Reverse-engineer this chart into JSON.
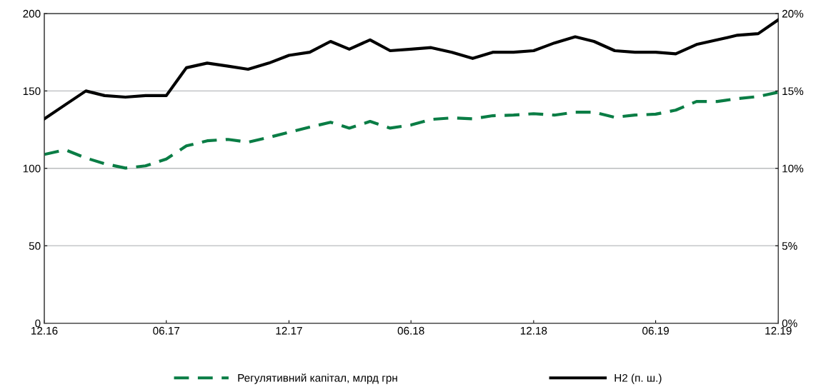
{
  "chart_data": {
    "type": "line",
    "x": [
      "2016-12",
      "2017-01",
      "2017-02",
      "2017-03",
      "2017-04",
      "2017-05",
      "2017-06",
      "2017-07",
      "2017-08",
      "2017-09",
      "2017-10",
      "2017-11",
      "2017-12",
      "2018-01",
      "2018-02",
      "2018-03",
      "2018-04",
      "2018-05",
      "2018-06",
      "2018-07",
      "2018-08",
      "2018-09",
      "2018-10",
      "2018-11",
      "2018-12",
      "2019-01",
      "2019-02",
      "2019-03",
      "2019-04",
      "2019-05",
      "2019-06",
      "2019-07",
      "2019-08",
      "2019-09",
      "2019-10",
      "2019-11",
      "2019-12"
    ],
    "series": [
      {
        "name": "Регулятивний капітал, млрд грн",
        "color": "#0a7d45",
        "line_style": "dashed",
        "values": [
          109,
          112,
          106.7,
          103,
          100.2,
          101.6,
          106,
          114.5,
          117.8,
          118.7,
          116.9,
          120,
          123.3,
          126.6,
          129.8,
          126,
          130.3,
          126,
          128,
          131.6,
          132.6,
          132,
          134,
          134.4,
          135.3,
          134.4,
          136.3,
          136.3,
          133,
          134.4,
          135,
          137.6,
          143.2,
          143.2,
          145,
          146.4,
          149.2
        ]
      },
      {
        "name": "Н2 (п. ш.)",
        "color": "#000000",
        "line_style": "solid",
        "axis": "y2",
        "values": [
          13.2,
          14.1,
          15.0,
          14.7,
          14.6,
          14.7,
          14.7,
          16.5,
          16.8,
          16.6,
          16.4,
          16.8,
          17.3,
          17.5,
          18.2,
          17.7,
          18.3,
          17.6,
          17.7,
          17.8,
          17.5,
          17.1,
          17.5,
          17.5,
          17.6,
          18.1,
          18.5,
          18.2,
          17.6,
          17.5,
          17.5,
          17.4,
          18.0,
          18.3,
          18.6,
          18.7,
          19.6
        ]
      }
    ],
    "xlim": [
      "2016-12",
      "2019-12"
    ],
    "xticks": [
      {
        "value": "2016-12",
        "label": "12.16"
      },
      {
        "value": "2017-06",
        "label": "06.17"
      },
      {
        "value": "2017-12",
        "label": "12.17"
      },
      {
        "value": "2018-06",
        "label": "06.18"
      },
      {
        "value": "2018-12",
        "label": "12.18"
      },
      {
        "value": "2019-06",
        "label": "06.19"
      },
      {
        "value": "2019-12",
        "label": "12.19"
      }
    ],
    "ylim": [
      0,
      200
    ],
    "yticks": [
      0,
      50,
      100,
      150,
      200
    ],
    "y2lim": [
      0,
      20
    ],
    "y2ticks": [
      {
        "value": 0,
        "label": "0%"
      },
      {
        "value": 5,
        "label": "5%"
      },
      {
        "value": 10,
        "label": "10%"
      },
      {
        "value": 15,
        "label": "15%"
      },
      {
        "value": 20,
        "label": "20%"
      }
    ],
    "grid": "y",
    "legend": "bottom",
    "marker": "none"
  }
}
